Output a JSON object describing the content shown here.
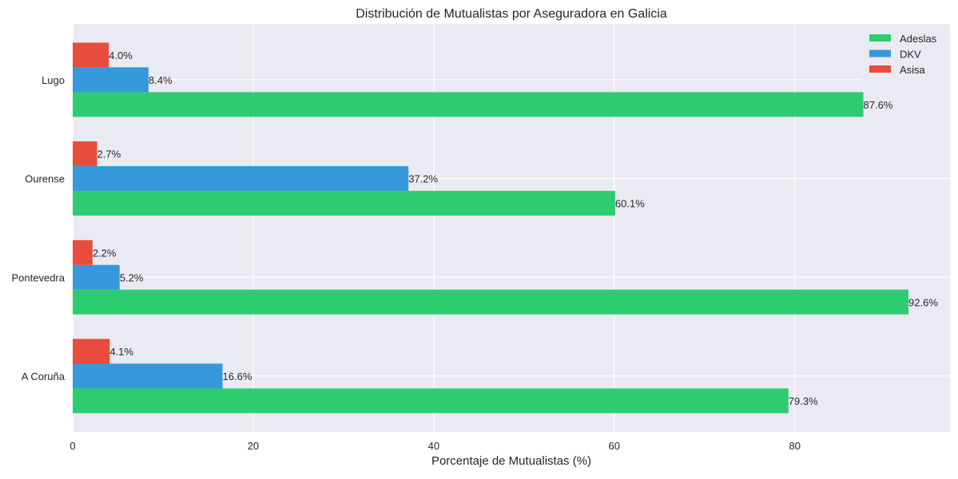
{
  "chart_data": {
    "type": "bar",
    "orientation": "horizontal",
    "title": "Distribución de Mutualistas por Aseguradora en Galicia",
    "xlabel": "Porcentaje de Mutualistas (%)",
    "ylabel": "",
    "xlim": [
      0,
      97.2
    ],
    "xticks": [
      0,
      20,
      40,
      60,
      80
    ],
    "categories": [
      "A Coruña",
      "Pontevedra",
      "Ourense",
      "Lugo"
    ],
    "series": [
      {
        "name": "Adeslas",
        "color": "#2ecc71",
        "values": [
          79.3,
          92.6,
          60.1,
          87.6
        ]
      },
      {
        "name": "DKV",
        "color": "#3498db",
        "values": [
          16.6,
          5.2,
          37.2,
          8.4
        ]
      },
      {
        "name": "Asisa",
        "color": "#e74c3c",
        "values": [
          4.1,
          2.2,
          2.7,
          4.0
        ]
      }
    ],
    "value_label_format": "{v}%",
    "grid": true,
    "legend_position": "top-right",
    "background": "#eaeaf2"
  }
}
